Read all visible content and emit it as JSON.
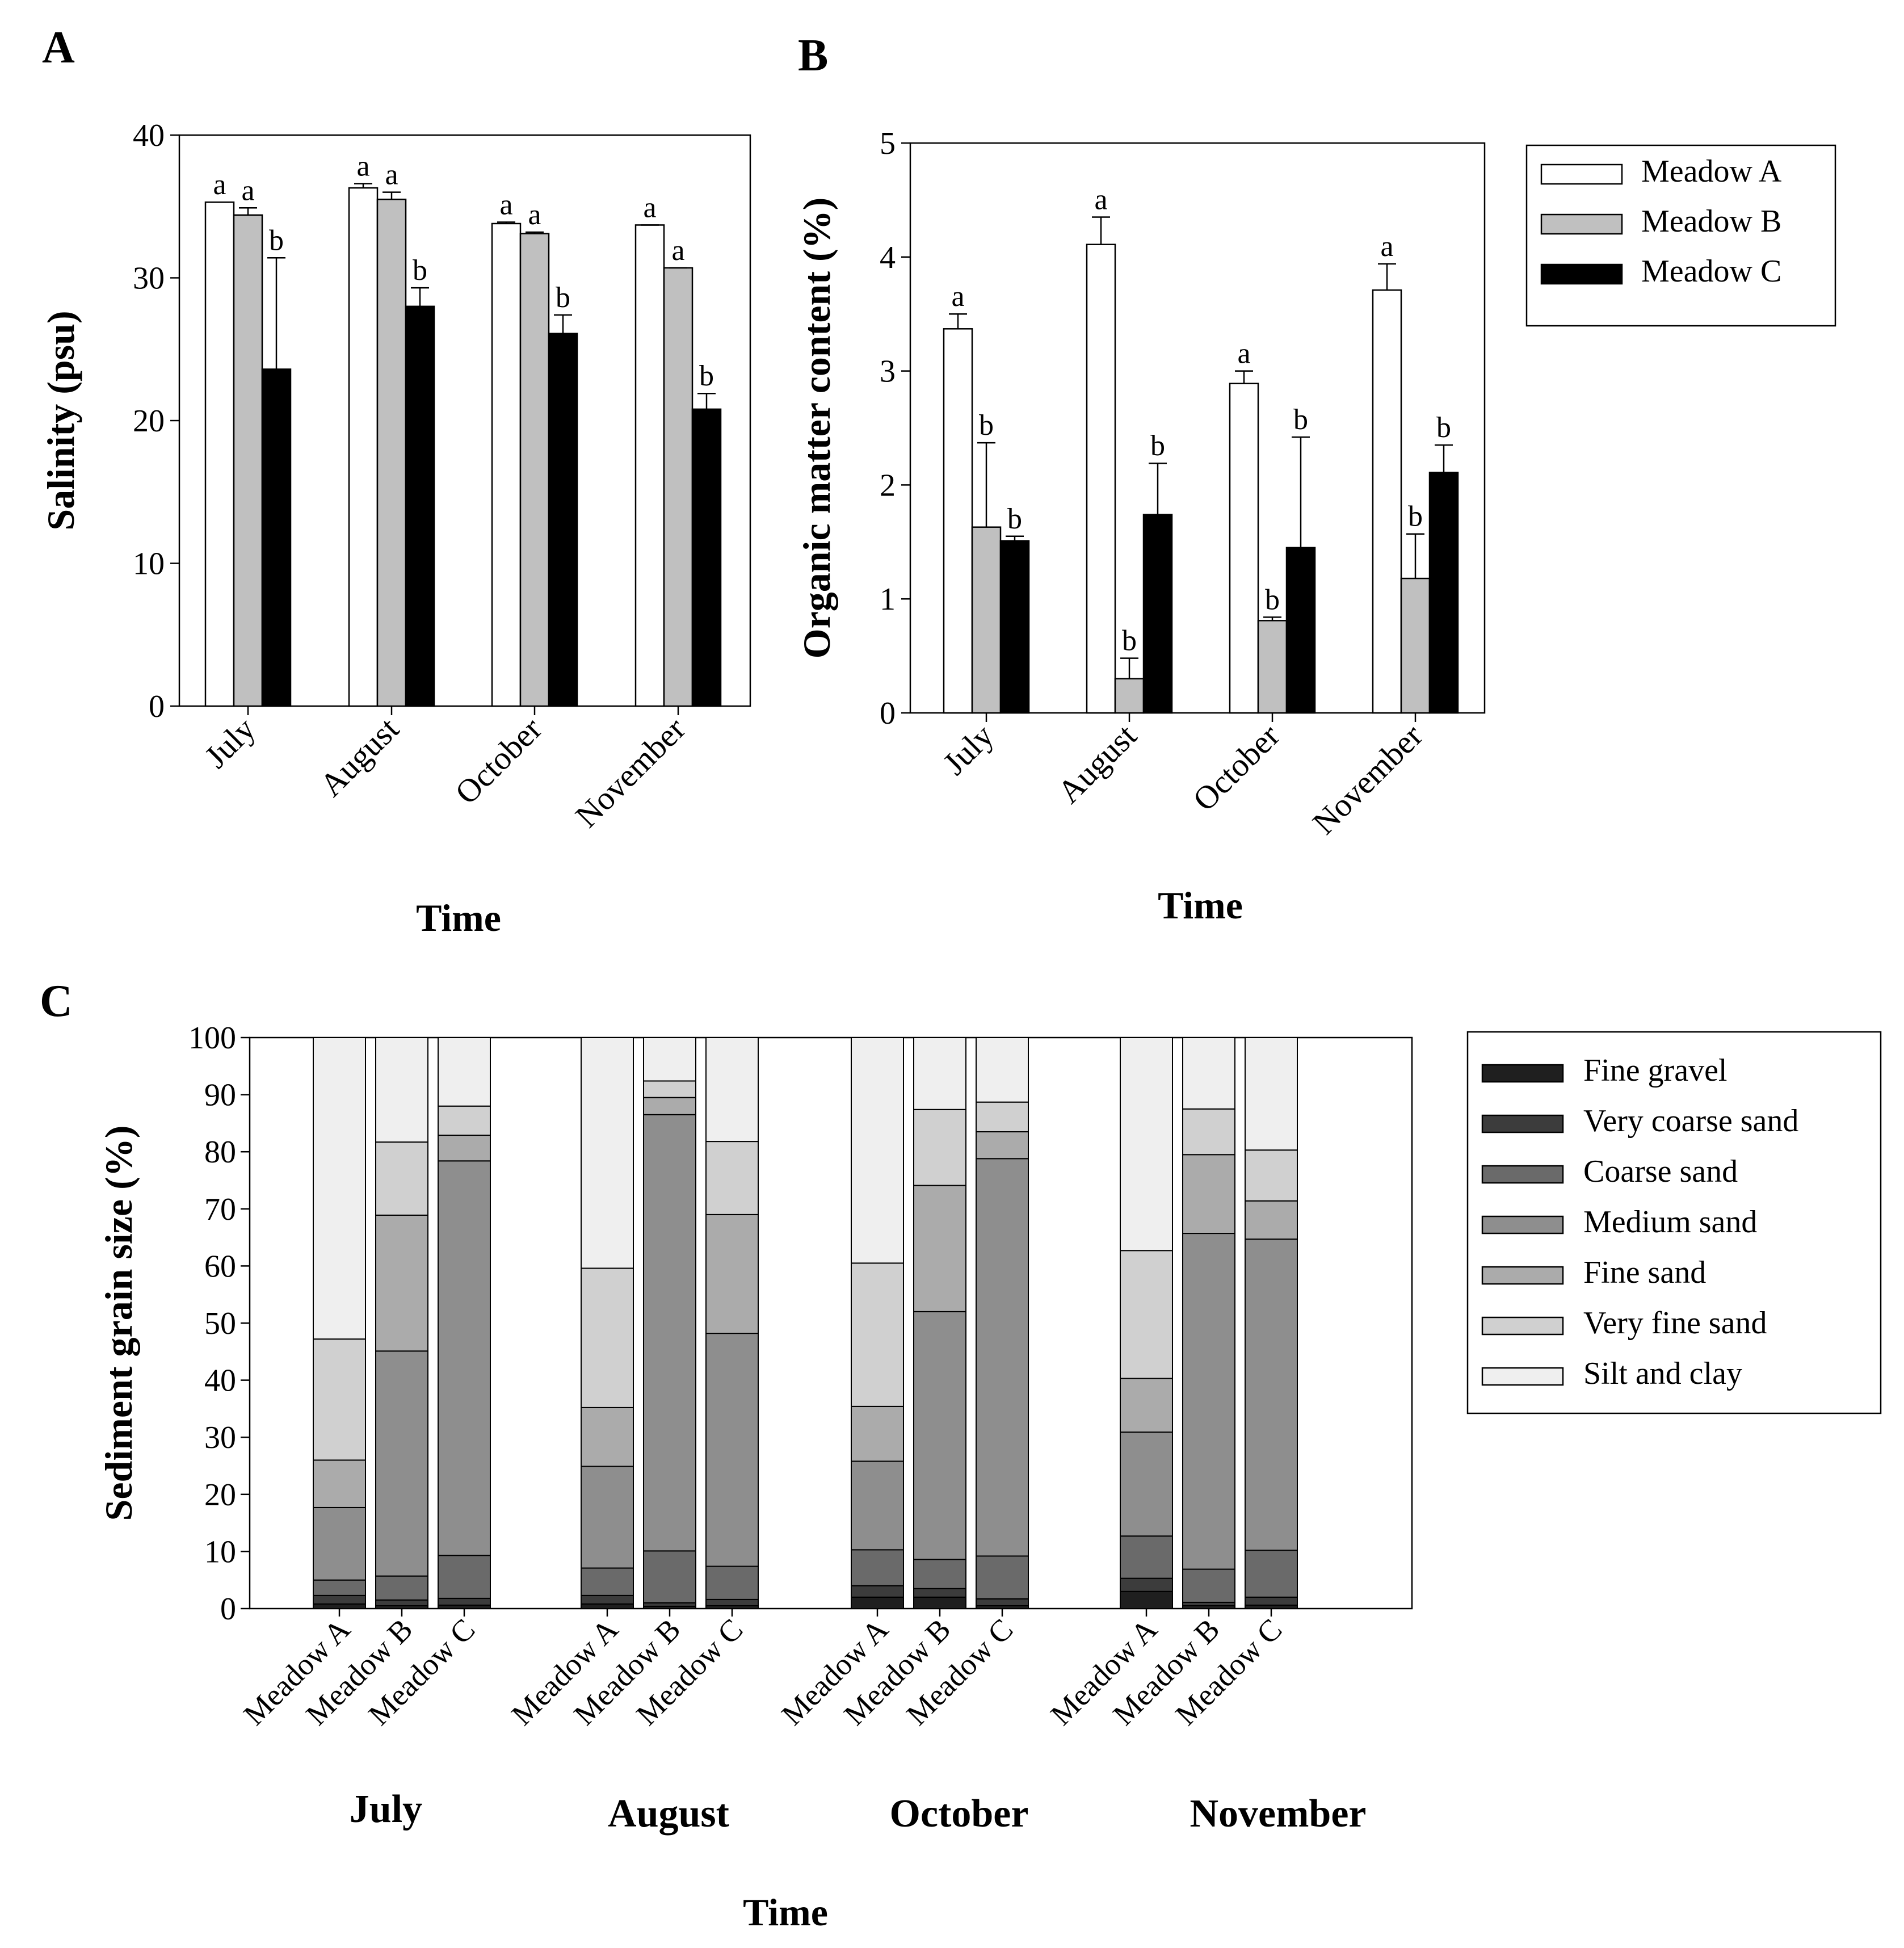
{
  "panels": {
    "A": {
      "letter": "A"
    },
    "B": {
      "letter": "B"
    },
    "C": {
      "letter": "C"
    }
  },
  "colors": {
    "meadow_a": "#ffffff",
    "meadow_b": "#c0c0c0",
    "meadow_c": "#000000",
    "fine_gravel": "#1f1f1f",
    "very_coarse_sand": "#3c3c3c",
    "coarse_sand": "#6a6a6a",
    "medium_sand": "#8e8e8e",
    "fine_sand": "#ababab",
    "very_fine_sand": "#d0d0d0",
    "silt_and_clay": "#efefef"
  },
  "chart_data": [
    {
      "id": "A",
      "type": "bar",
      "title": "",
      "xlabel": "Time",
      "ylabel": "Salinity (psu)",
      "ylim": [
        0,
        40
      ],
      "yticks": [
        0,
        10,
        20,
        30,
        40
      ],
      "categories": [
        "July",
        "August",
        "October",
        "November"
      ],
      "series": [
        {
          "name": "Meadow A",
          "values": [
            35.3,
            36.3,
            33.8,
            33.7
          ],
          "errors": [
            0.0,
            0.3,
            0.1,
            0.0
          ],
          "letters": [
            "a",
            "a",
            "a",
            "a"
          ]
        },
        {
          "name": "Meadow B",
          "values": [
            34.4,
            35.5,
            33.1,
            30.7
          ],
          "errors": [
            0.5,
            0.5,
            0.1,
            0.0
          ],
          "letters": [
            "a",
            "a",
            "a",
            "a"
          ]
        },
        {
          "name": "Meadow C",
          "values": [
            23.6,
            28.0,
            26.1,
            20.8
          ],
          "errors": [
            7.8,
            1.3,
            1.3,
            1.1
          ],
          "letters": [
            "b",
            "b",
            "b",
            "b"
          ]
        }
      ]
    },
    {
      "id": "B",
      "type": "bar",
      "title": "",
      "xlabel": "Time",
      "ylabel": "Organic matter content (%)",
      "ylim": [
        0,
        5
      ],
      "yticks": [
        0,
        1,
        2,
        3,
        4,
        5
      ],
      "categories": [
        "July",
        "August",
        "October",
        "November"
      ],
      "legend": [
        "Meadow A",
        "Meadow B",
        "Meadow C"
      ],
      "series": [
        {
          "name": "Meadow A",
          "values": [
            3.37,
            4.11,
            2.89,
            3.71
          ],
          "errors": [
            0.13,
            0.24,
            0.11,
            0.23
          ],
          "letters": [
            "a",
            "a",
            "a",
            "a"
          ]
        },
        {
          "name": "Meadow B",
          "values": [
            1.63,
            0.3,
            0.81,
            1.18
          ],
          "errors": [
            0.74,
            0.18,
            0.03,
            0.39
          ],
          "letters": [
            "b",
            "b",
            "b",
            "b"
          ]
        },
        {
          "name": "Meadow C",
          "values": [
            1.51,
            1.74,
            1.45,
            2.11
          ],
          "errors": [
            0.04,
            0.45,
            0.97,
            0.24
          ],
          "letters": [
            "b",
            "b",
            "b",
            "b"
          ]
        }
      ]
    },
    {
      "id": "C",
      "type": "stacked-bar",
      "title": "",
      "xlabel": "Time",
      "ylabel": "Sediment grain size (%)",
      "ylim": [
        0,
        100
      ],
      "yticks": [
        0,
        10,
        20,
        30,
        40,
        50,
        60,
        70,
        80,
        90,
        100
      ],
      "groups": [
        "July",
        "August",
        "October",
        "November"
      ],
      "categories": [
        "Meadow A",
        "Meadow B",
        "Meadow C"
      ],
      "legend": [
        "Fine gravel",
        "Very coarse sand",
        "Coarse sand",
        "Medium sand",
        "Fine sand",
        "Very fine sand",
        "Silt and clay"
      ],
      "bars": [
        {
          "group": "July",
          "meadow": "Meadow A",
          "values": [
            0.8,
            1.5,
            2.7,
            12.7,
            8.3,
            21.2,
            52.8
          ]
        },
        {
          "group": "July",
          "meadow": "Meadow B",
          "values": [
            0.5,
            1.0,
            4.2,
            39.4,
            23.8,
            12.8,
            18.3
          ]
        },
        {
          "group": "July",
          "meadow": "Meadow C",
          "values": [
            0.6,
            1.2,
            7.5,
            69.1,
            4.5,
            5.1,
            12.0
          ]
        },
        {
          "group": "August",
          "meadow": "Meadow A",
          "values": [
            0.8,
            1.5,
            4.8,
            17.8,
            10.3,
            24.4,
            40.4
          ]
        },
        {
          "group": "August",
          "meadow": "Meadow B",
          "values": [
            0.4,
            0.6,
            9.1,
            76.4,
            3.0,
            2.9,
            7.6
          ]
        },
        {
          "group": "August",
          "meadow": "Meadow C",
          "values": [
            0.5,
            1.1,
            5.8,
            40.8,
            20.8,
            12.8,
            18.2
          ]
        },
        {
          "group": "October",
          "meadow": "Meadow A",
          "values": [
            2.0,
            2.0,
            6.3,
            15.5,
            9.6,
            25.1,
            39.5
          ]
        },
        {
          "group": "October",
          "meadow": "Meadow B",
          "values": [
            2.0,
            1.5,
            5.1,
            43.4,
            22.1,
            13.3,
            12.6
          ]
        },
        {
          "group": "October",
          "meadow": "Meadow C",
          "values": [
            0.5,
            1.2,
            7.5,
            69.6,
            4.7,
            5.2,
            11.3
          ]
        },
        {
          "group": "November",
          "meadow": "Meadow A",
          "values": [
            3.0,
            2.3,
            7.4,
            18.2,
            9.4,
            22.4,
            37.3
          ]
        },
        {
          "group": "November",
          "meadow": "Meadow B",
          "values": [
            0.5,
            0.6,
            5.8,
            58.8,
            13.8,
            8.0,
            12.5
          ]
        },
        {
          "group": "November",
          "meadow": "Meadow C",
          "values": [
            0.6,
            1.4,
            8.2,
            54.5,
            6.7,
            8.9,
            19.7
          ]
        }
      ]
    }
  ]
}
